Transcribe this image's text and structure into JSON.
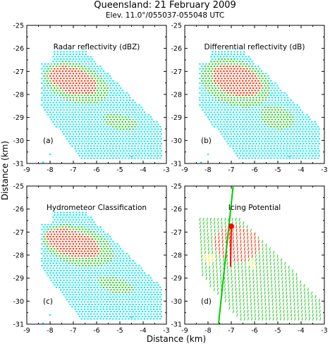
{
  "figure": {
    "title": "Queensland: 21 February 2009",
    "subtitle": "Elev. 11.0°/055037-055048 UTC",
    "xlabel": "Distance (km)",
    "ylabel": "Distance (km)"
  },
  "chart_data": [
    {
      "type": "scatter",
      "title": "Radar reflectivity (dBZ)",
      "panel": "(a)",
      "xlim": [
        -9,
        -3
      ],
      "ylim": [
        -31,
        -25
      ],
      "xticks": [
        -9,
        -8,
        -7,
        -6,
        -5,
        -4,
        -3
      ],
      "yticks": [
        -25,
        -26,
        -27,
        -28,
        -29,
        -30,
        -31
      ],
      "grid": false,
      "series": [
        {
          "color": "#00e6ee",
          "region": "echo-envelope"
        },
        {
          "color": "#22cc22",
          "region": "moderate"
        },
        {
          "color": "#ff2a00",
          "region": "core"
        }
      ]
    },
    {
      "type": "scatter",
      "title": "Differential reflectivity (dB)",
      "panel": "(b)",
      "xlim": [
        -9,
        -3
      ],
      "ylim": [
        -31,
        -25
      ],
      "xticks": [
        -9,
        -8,
        -7,
        -6,
        -5,
        -4,
        -3
      ],
      "yticks": [
        -25,
        -26,
        -27,
        -28,
        -29,
        -30,
        -31
      ],
      "grid": false,
      "series": [
        {
          "color": "#00e6ee",
          "region": "echo-envelope"
        },
        {
          "color": "#22cc22",
          "region": "moderate"
        },
        {
          "color": "#ff2a00",
          "region": "core"
        }
      ]
    },
    {
      "type": "scatter",
      "title": "Hydrometeor Classification",
      "panel": "(c)",
      "xlim": [
        -9,
        -3
      ],
      "ylim": [
        -31,
        -25
      ],
      "xticks": [
        -9,
        -8,
        -7,
        -6,
        -5,
        -4,
        -3
      ],
      "yticks": [
        -25,
        -26,
        -27,
        -28,
        -29,
        -30,
        -31
      ],
      "grid": false,
      "series": [
        {
          "color": "#00e6ee",
          "region": "echo-envelope"
        },
        {
          "color": "#22cc22",
          "region": "moderate"
        },
        {
          "color": "#ff2a00",
          "region": "core"
        }
      ]
    },
    {
      "type": "scatter",
      "title": "Icing Potential",
      "panel": "(d)",
      "xlim": [
        -9,
        -3
      ],
      "ylim": [
        -31,
        -25
      ],
      "xticks": [
        -9,
        -8,
        -7,
        -6,
        -5,
        -4,
        -3
      ],
      "yticks": [
        -25,
        -26,
        -27,
        -28,
        -29,
        -30,
        -31
      ],
      "grid": false,
      "series": [
        {
          "color": "#33cc33",
          "region": "echo-envelope"
        },
        {
          "color": "#ff2a00",
          "region": "core"
        },
        {
          "color": "#ffee00",
          "region": "edge"
        }
      ],
      "track": {
        "color": "#00cc00",
        "x": [
          -7.55,
          -6.92
        ],
        "y": [
          -31,
          -25
        ]
      },
      "marker": {
        "color": "#ff0000",
        "x": -7.0,
        "y": -26.75
      }
    }
  ]
}
